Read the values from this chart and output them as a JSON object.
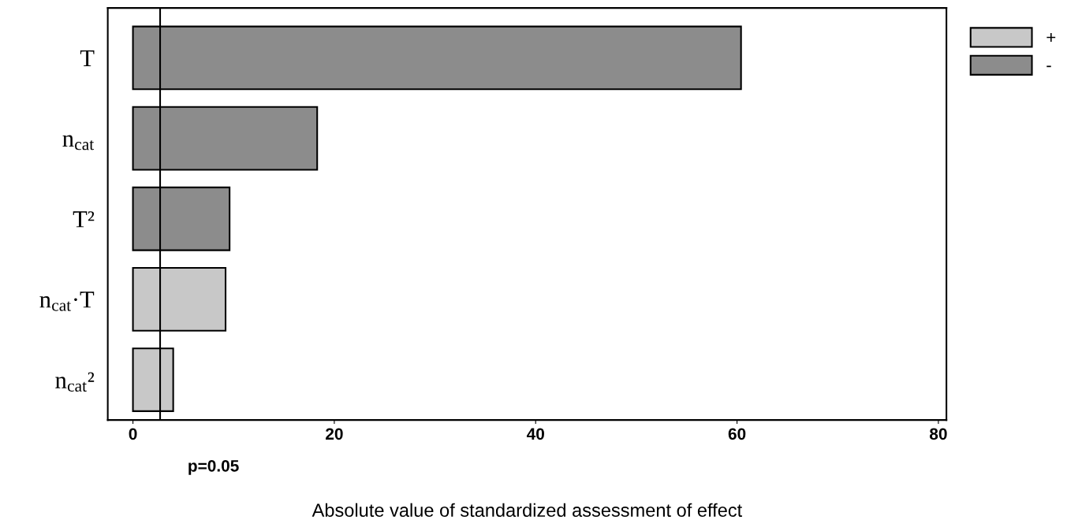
{
  "chart_data": {
    "type": "bar",
    "orientation": "horizontal",
    "categories": [
      "T",
      "n$_{cat}$",
      "T²",
      "n$_{cat}$·T",
      "n$_{cat}$²"
    ],
    "series": [
      {
        "name": "+",
        "color": "#c8c8c8",
        "values": [
          null,
          null,
          null,
          9.2,
          4.0
        ]
      },
      {
        "name": "-",
        "color": "#8c8c8c",
        "values": [
          60.4,
          18.3,
          9.6,
          null,
          null
        ]
      }
    ],
    "xlabel": "Absolute value of standardized assessment of effect",
    "xlim": [
      -2.5,
      80.8
    ],
    "xticks": [
      0,
      20,
      40,
      60,
      80
    ],
    "ref_lines": [
      {
        "axis": "x",
        "value": 2.7,
        "color": "#000000"
      }
    ],
    "annotations": [
      "p=0.05"
    ],
    "legend": "top right",
    "grid": false
  }
}
